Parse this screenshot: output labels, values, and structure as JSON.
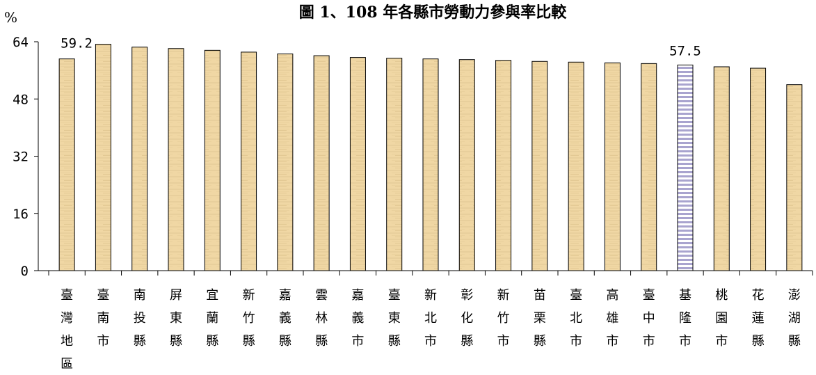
{
  "chart_data": {
    "type": "bar",
    "title": "圖 1、108 年各縣市勞動力參與率比較",
    "ylabel": "%",
    "xlabel": "",
    "ylim": [
      0,
      64
    ],
    "yticks": [
      "0",
      "16",
      "32",
      "48",
      "64"
    ],
    "grid": false,
    "legend": "none",
    "categories": [
      "臺灣地區",
      "臺南市",
      "南投縣",
      "屏東縣",
      "宜蘭縣",
      "新竹縣",
      "嘉義縣",
      "雲林縣",
      "嘉義市",
      "臺東縣",
      "新北市",
      "彰化縣",
      "新竹市",
      "苗栗縣",
      "臺北市",
      "高雄市",
      "臺中市",
      "基隆市",
      "桃園市",
      "花蓮縣",
      "澎湖縣"
    ],
    "values": [
      59.2,
      63.3,
      62.5,
      62.1,
      61.6,
      61.1,
      60.6,
      60.1,
      59.6,
      59.4,
      59.2,
      59.0,
      58.8,
      58.5,
      58.3,
      58.1,
      57.9,
      57.5,
      57.0,
      56.6,
      52.0
    ],
    "data_labels": [
      {
        "index": 0,
        "text": "59.2"
      },
      {
        "index": 17,
        "text": "57.5"
      }
    ],
    "highlight_index": 17,
    "colors": {
      "bar": "#f0d7a4",
      "bar_texture": "#d9bf8c",
      "highlight_bar": "#ffffff",
      "highlight_stripe": "#a9a4cf",
      "axis": "#000000"
    }
  }
}
